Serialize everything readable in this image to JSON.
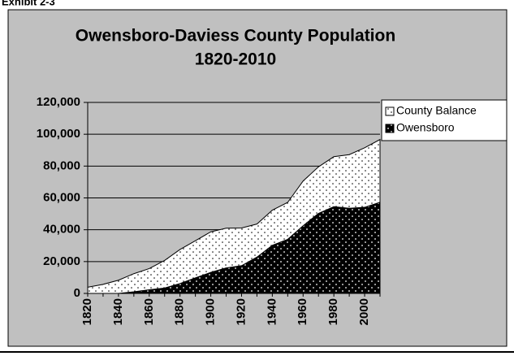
{
  "chart_data": {
    "type": "area",
    "stacked": true,
    "exhibit_label": "Exhibit 2-3",
    "title": "Owensboro-Daviess County Population",
    "subtitle": "1820-2010",
    "categories": [
      "1820",
      null,
      "1840",
      null,
      "1860",
      null,
      "1880",
      null,
      "1900",
      null,
      "1920",
      null,
      "1940",
      null,
      "1960",
      null,
      "1980",
      null,
      "2000",
      null
    ],
    "series": [
      {
        "name": "Owensboro",
        "color": "#000000",
        "values": [
          0,
          0,
          0,
          1000,
          2300,
          3400,
          6200,
          9800,
          13200,
          16000,
          17400,
          22800,
          30200,
          34000,
          42500,
          50300,
          54500,
          53500,
          54100,
          57300
        ]
      },
      {
        "name": "County Balance",
        "color": "#ffffff",
        "values": [
          3900,
          5700,
          8300,
          11400,
          13300,
          17300,
          21400,
          23300,
          25500,
          25000,
          23700,
          20800,
          22100,
          23200,
          28100,
          29200,
          31400,
          33700,
          37400,
          39400
        ]
      }
    ],
    "ylim": [
      0,
      120000
    ],
    "yticks": [
      0,
      {
        "value": 20000,
        "label": "20,000"
      },
      {
        "value": 40000,
        "label": "40,000"
      },
      {
        "value": 60000,
        "label": "60,000"
      },
      {
        "value": 80000,
        "label": "80,000"
      },
      {
        "value": 100000,
        "label": "100,000"
      },
      {
        "value": 120000,
        "label": "120,000"
      }
    ],
    "grid": true,
    "legend": "right"
  }
}
